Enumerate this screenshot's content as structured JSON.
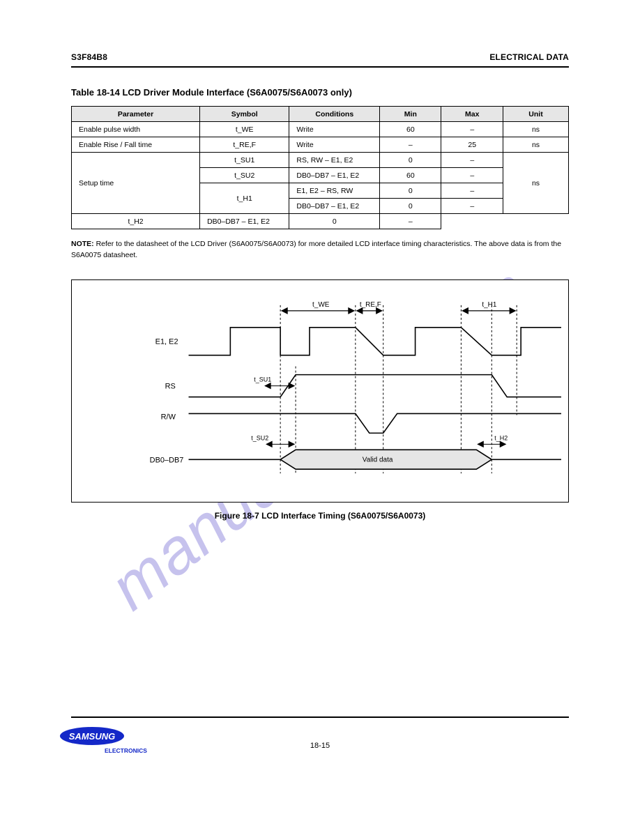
{
  "header": {
    "left": "S3F84B8",
    "right": "ELECTRICAL DATA"
  },
  "watermark": "manualshive.com",
  "sections": {
    "table_title": "Table 18-14   LCD Driver Module Interface (S6A0075/S6A0073 only)"
  },
  "table": {
    "columns": [
      "Parameter",
      "Symbol",
      "Conditions",
      "Min",
      "Max",
      "Unit"
    ],
    "col_classes": [
      "col-param",
      "col-sym",
      "col-cond",
      "col-min",
      "col-max",
      "col-unit"
    ],
    "rows": [
      {
        "cells": [
          "Enable pulse width",
          "t_WE",
          "Write",
          "60",
          "–",
          "ns"
        ],
        "rowspan": [
          1,
          1,
          1,
          1,
          1,
          1
        ]
      },
      {
        "cells": [
          "Enable Rise / Fall time",
          "t_RE,F",
          "Write",
          "–",
          "25",
          "ns"
        ],
        "rowspan": [
          1,
          1,
          1,
          1,
          1,
          1
        ]
      },
      {
        "cells": [
          "Setup time",
          "t_SU1",
          "RS, RW – E1, E2",
          "0",
          "–",
          "ns"
        ],
        "rowspan": [
          4,
          1,
          1,
          1,
          1,
          4
        ]
      },
      {
        "cells": [
          "t_SU2",
          "DB0–DB7 – E1, E2",
          "60",
          "–"
        ],
        "rowspan": [
          1,
          1,
          1,
          1
        ]
      },
      {
        "cells": [
          "t_H1",
          "E1, E2 – RS, RW",
          "0",
          "–"
        ],
        "rowspan": [
          2,
          1,
          1,
          1
        ]
      },
      {
        "cells": [
          "DB0–DB7 – E1, E2",
          "0",
          "–"
        ],
        "rowspan": [
          1,
          1,
          1
        ]
      },
      {
        "cells": [
          "t_H2",
          "DB0–DB7 – E1, E2",
          "0",
          "–"
        ],
        "rowspan": [
          1,
          1,
          1,
          1
        ]
      }
    ]
  },
  "note": {
    "head": "NOTE:",
    "body": "Refer to the datasheet of the LCD Driver (S6A0075/S6A0073) for more detailed LCD interface timing characteristics. The above data is from the S6A0075 datasheet."
  },
  "figure": {
    "labels": {
      "twe": "t_WE",
      "tref": "t_RE,F",
      "tsu1": "t_SU1",
      "tsu2": "t_SU2",
      "th1": "t_H1",
      "th2": "t_H2",
      "clk": "E1, E2",
      "rs": "RS",
      "rw": "R/W",
      "data": "DB0–DB7",
      "valid": "Valid data"
    },
    "colors": {
      "stroke": "#000000",
      "fill": "#e6e6e6",
      "bg": "#ffffff"
    },
    "caption": "Figure 18-7   LCD Interface Timing (S6A0075/S6A0073)"
  },
  "footer": {
    "logo_top": "SAMSUNG",
    "logo_bottom": "ELECTRONICS",
    "page": "18-15"
  }
}
